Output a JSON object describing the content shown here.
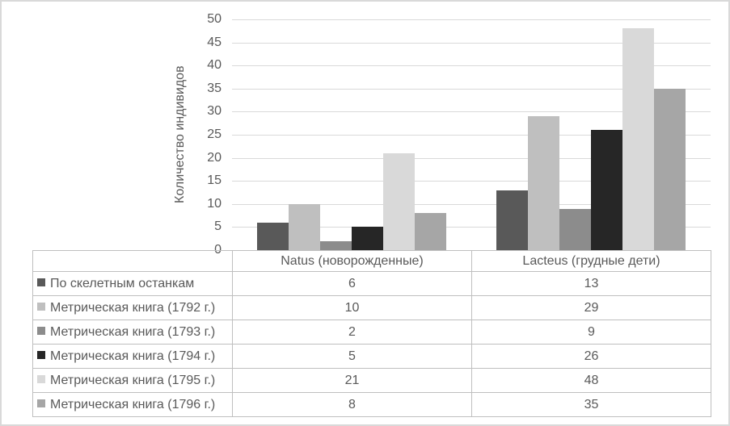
{
  "frame": {
    "background": "#ffffff",
    "border_color": "#d9d9d9",
    "gridline_color": "#d9d9d9",
    "table_border_color": "#bfbfbf",
    "text_color": "#595959"
  },
  "chart_data": {
    "type": "bar",
    "title": "",
    "xlabel": "",
    "ylabel": "Количество индивидов",
    "ylim": [
      0,
      50
    ],
    "yticks": [
      0,
      5,
      10,
      15,
      20,
      25,
      30,
      35,
      40,
      45,
      50
    ],
    "grid": true,
    "legend_position": "data-table-left-column",
    "categories": [
      "Natus (новорожденные)",
      "Lacteus (грудные дети)"
    ],
    "series": [
      {
        "name": "По скелетным останкам",
        "color": "#595959",
        "values": [
          6,
          13
        ]
      },
      {
        "name": "Метрическая книга (1792 г.)",
        "color": "#bfbfbf",
        "values": [
          10,
          29
        ]
      },
      {
        "name": "Метрическая книга (1793 г.)",
        "color": "#8c8c8c",
        "values": [
          2,
          9
        ]
      },
      {
        "name": "Метрическая книга (1794 г.)",
        "color": "#262626",
        "values": [
          5,
          26
        ]
      },
      {
        "name": "Метрическая книга (1795 г.)",
        "color": "#d9d9d9",
        "values": [
          21,
          48
        ]
      },
      {
        "name": "Метрическая книга (1796 г.)",
        "color": "#a6a6a6",
        "values": [
          8,
          35
        ]
      }
    ]
  }
}
